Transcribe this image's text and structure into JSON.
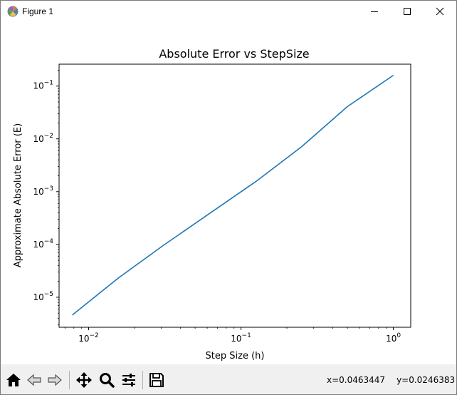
{
  "window": {
    "title": "Figure 1"
  },
  "toolbar": {
    "buttons": [
      "home-icon",
      "back-arrow-icon",
      "forward-arrow-icon",
      "pan-icon",
      "zoom-icon",
      "subplots-config-icon",
      "save-icon"
    ],
    "coord_x": "x=0.0463447",
    "coord_y": "y=0.0246383"
  },
  "chart_data": {
    "type": "line",
    "title": "Absolute Error vs StepSize",
    "xlabel": "Step Size (h)",
    "ylabel": "Approximate Absolute Error (E)",
    "xscale": "log",
    "yscale": "log",
    "xlim": [
      0.0064,
      1.3
    ],
    "ylim": [
      2.7e-06,
      0.26
    ],
    "x_ticks": [
      {
        "value": 0.01,
        "base": "10",
        "exp": "−2"
      },
      {
        "value": 0.1,
        "base": "10",
        "exp": "−1"
      },
      {
        "value": 1,
        "base": "10",
        "exp": "0"
      }
    ],
    "y_ticks": [
      {
        "value": 1e-05,
        "base": "10",
        "exp": "−5"
      },
      {
        "value": 0.0001,
        "base": "10",
        "exp": "−4"
      },
      {
        "value": 0.001,
        "base": "10",
        "exp": "−3"
      },
      {
        "value": 0.01,
        "base": "10",
        "exp": "−2"
      },
      {
        "value": 0.1,
        "base": "10",
        "exp": "−1"
      }
    ],
    "grid": false,
    "series": [
      {
        "color": "#1f77b4",
        "x": [
          0.0078125,
          0.015625,
          0.03125,
          0.0625,
          0.125,
          0.25,
          0.5,
          1.0
        ],
        "y": [
          4.6e-06,
          2.3e-05,
          9.8e-05,
          0.00039,
          0.00155,
          0.0071,
          0.041,
          0.16
        ]
      }
    ]
  }
}
